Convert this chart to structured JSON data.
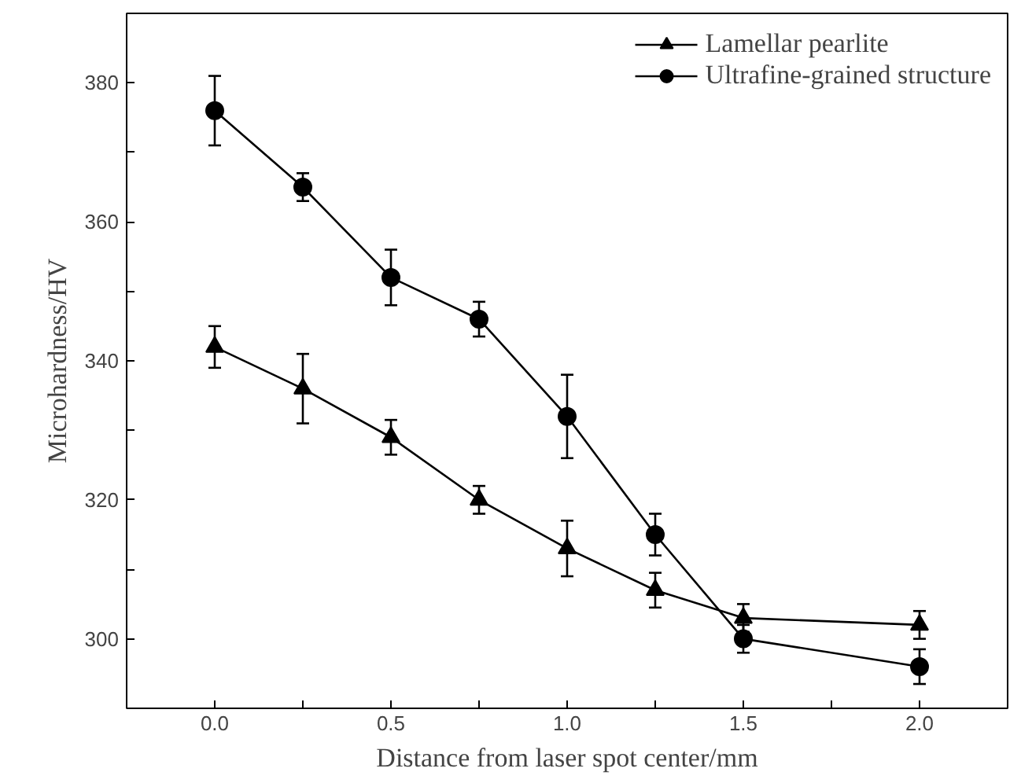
{
  "chart_data": {
    "type": "line",
    "xlabel": "Distance from laser spot center/mm",
    "ylabel": "Microhardness/HV",
    "x": [
      0,
      0.25,
      0.5,
      0.75,
      1.0,
      1.25,
      1.5,
      2.0
    ],
    "xlim": [
      -0.25,
      2.25
    ],
    "xticks": [
      {
        "value": 0,
        "label": "0.0"
      },
      {
        "value": 0.25,
        "label": null
      },
      0.5,
      {
        "value": 0.75,
        "label": null
      },
      {
        "value": 1,
        "label": "1.0"
      },
      {
        "value": 1.25,
        "label": null
      },
      1.5,
      {
        "value": 1.75,
        "label": null
      },
      {
        "value": 2,
        "label": "2.0"
      }
    ],
    "ylim": [
      290,
      390
    ],
    "yticks": [
      {
        "value": 290,
        "label": null
      },
      300,
      {
        "value": 310,
        "label": null
      },
      320,
      {
        "value": 330,
        "label": null
      },
      340,
      {
        "value": 350,
        "label": null
      },
      360,
      {
        "value": 370,
        "label": null
      },
      380
    ],
    "grid": false,
    "legend": "top right",
    "series": [
      {
        "name": "Lamellar pearlite",
        "color": "#000000",
        "marker": "triangle",
        "values": [
          342,
          336,
          329,
          320,
          313,
          307,
          303,
          302
        ],
        "errors": [
          3,
          5,
          2.5,
          2,
          4,
          2.5,
          2,
          2
        ]
      },
      {
        "name": "Ultrafine-grained structure",
        "color": "#000000",
        "marker": "circle",
        "values": [
          376,
          365,
          352,
          346,
          332,
          315,
          300,
          296
        ],
        "errors": [
          5,
          2,
          4,
          2.5,
          6,
          3,
          2,
          2.5
        ]
      }
    ]
  }
}
